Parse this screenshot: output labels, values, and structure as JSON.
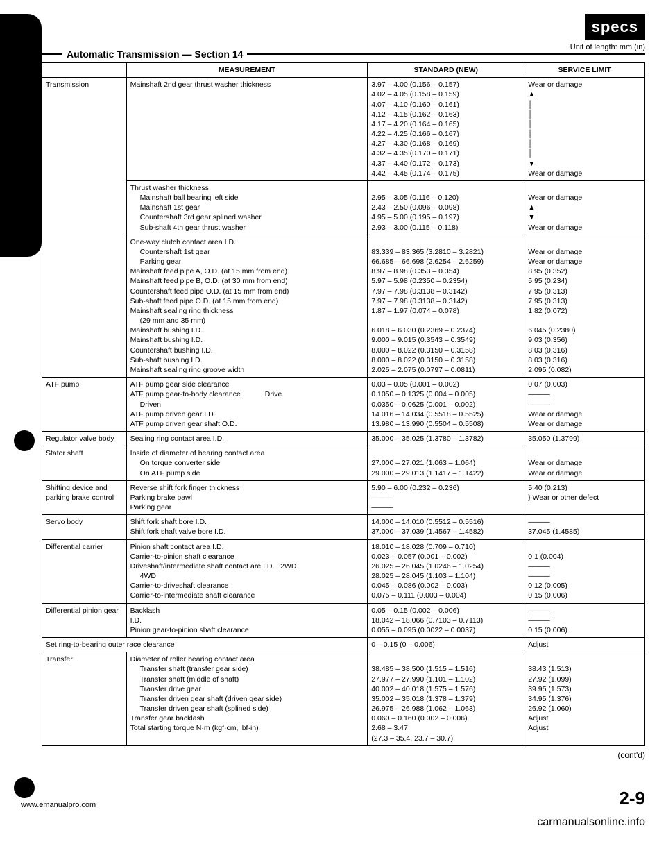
{
  "badge": "specs",
  "unit_note": "Unit of length: mm (in)",
  "section_title": "Automatic Transmission — Section 14",
  "headers": {
    "c1": "",
    "c2": "MEASUREMENT",
    "c3": "STANDARD (NEW)",
    "c4": "SERVICE LIMIT"
  },
  "rows": [
    {
      "component": "Transmission",
      "blocks": [
        {
          "measure": [
            "Mainshaft 2nd gear thrust washer thickness"
          ],
          "standard": [
            "3.97 – 4.00 (0.156 – 0.157)",
            "4.02 – 4.05 (0.158 – 0.159)",
            "4.07 – 4.10 (0.160 – 0.161)",
            "4.12 – 4.15 (0.162 – 0.163)",
            "4.17 – 4.20 (0.164 – 0.165)",
            "4.22 – 4.25 (0.166 – 0.167)",
            "4.27 – 4.30 (0.168 – 0.169)",
            "4.32 – 4.35 (0.170 – 0.171)",
            "4.37 – 4.40 (0.172 – 0.173)",
            "4.42 – 4.45 (0.174 – 0.175)"
          ],
          "limit": [
            "Wear or damage",
            "▲",
            "│",
            "│",
            "│",
            "│",
            "│",
            "│",
            "▼",
            "Wear or damage"
          ]
        },
        {
          "measure": [
            "Thrust washer thickness",
            "  Mainshaft ball bearing left side",
            "  Mainshaft 1st gear",
            "  Countershaft 3rd gear splined washer",
            "  Sub-shaft 4th gear thrust washer"
          ],
          "standard": [
            "",
            "2.95 – 3.05 (0.116 – 0.120)",
            "2.43 – 2.50 (0.096 – 0.098)",
            "4.95 – 5.00 (0.195 – 0.197)",
            "2.93 – 3.00 (0.115 – 0.118)"
          ],
          "limit": [
            "",
            "Wear or damage",
            "▲",
            "▼",
            "Wear or damage"
          ]
        },
        {
          "measure": [
            "One-way clutch contact area I.D.",
            "  Countershaft 1st gear",
            "  Parking gear",
            "Mainshaft feed pipe A, O.D. (at 15 mm from end)",
            "Mainshaft feed pipe B, O.D. (at 30 mm from end)",
            "Countershaft feed pipe O.D. (at 15 mm from end)",
            "Sub-shaft feed pipe O.D. (at 15 mm from end)",
            "Mainshaft sealing ring thickness",
            "  (29 mm and 35 mm)",
            "Mainshaft bushing I.D.",
            "Mainshaft bushing I.D.",
            "Countershaft bushing I.D.",
            "Sub-shaft bushing I.D.",
            "Mainshaft sealing ring groove width"
          ],
          "standard": [
            "",
            "83.339 – 83.365 (3.2810 – 3.2821)",
            "66.685 – 66.698 (2.6254 – 2.6259)",
            "8.97 – 8.98 (0.353 – 0.354)",
            "5.97 – 5.98 (0.2350 – 0.2354)",
            "7.97 – 7.98 (0.3138 – 0.3142)",
            "7.97 – 7.98 (0.3138 – 0.3142)",
            "1.87 – 1.97 (0.074 – 0.078)",
            "",
            "6.018 – 6.030 (0.2369 – 0.2374)",
            "9.000 – 9.015 (0.3543 – 0.3549)",
            "8.000 – 8.022 (0.3150 – 0.3158)",
            "8.000 – 8.022 (0.3150 – 0.3158)",
            "2.025 – 2.075 (0.0797 – 0.0811)"
          ],
          "limit": [
            "",
            "Wear or damage",
            "Wear or damage",
            "8.95 (0.352)",
            "5.95 (0.234)",
            "7.95 (0.313)",
            "7.95 (0.313)",
            "1.82 (0.072)",
            "",
            "6.045 (0.2380)",
            "9.03 (0.356)",
            "8.03 (0.316)",
            "8.03 (0.316)",
            "2.095 (0.082)"
          ]
        }
      ]
    },
    {
      "component": "ATF pump",
      "blocks": [
        {
          "measure": [
            "ATF pump gear side clearance",
            "ATF pump gear-to-body clearance            Drive",
            "                                                              Driven",
            "ATF pump driven gear I.D.",
            "ATF pump driven gear shaft O.D."
          ],
          "standard": [
            "0.03 – 0.05 (0.001 – 0.002)",
            "0.1050 – 0.1325 (0.004 – 0.005)",
            "0.0350 – 0.0625 (0.001 – 0.002)",
            "14.016 – 14.034 (0.5518 – 0.5525)",
            "13.980 – 13.990 (0.5504 – 0.5508)"
          ],
          "limit": [
            "0.07 (0.003)",
            "———",
            "———",
            "Wear or damage",
            "Wear or damage"
          ]
        }
      ]
    },
    {
      "component": "Regulator valve body",
      "blocks": [
        {
          "measure": [
            "Sealing ring contact area I.D."
          ],
          "standard": [
            "35.000 – 35.025 (1.3780 – 1.3782)"
          ],
          "limit": [
            "35.050 (1.3799)"
          ]
        }
      ]
    },
    {
      "component": "Stator shaft",
      "blocks": [
        {
          "measure": [
            "Inside of diameter of bearing contact area",
            "  On torque converter side",
            "  On ATF pump side"
          ],
          "standard": [
            "",
            "27.000 – 27.021 (1.063 – 1.064)",
            "29.000 – 29.013 (1.1417 – 1.1422)"
          ],
          "limit": [
            "",
            "Wear or damage",
            "Wear or damage"
          ]
        }
      ]
    },
    {
      "component": "Shifting device and parking brake control",
      "blocks": [
        {
          "measure": [
            "Reverse shift fork finger thickness",
            "Parking brake pawl",
            "Parking gear"
          ],
          "standard": [
            "5.90 – 6.00 (0.232 – 0.236)",
            "———",
            "———"
          ],
          "limit": [
            "5.40 (0.213)",
            "} Wear or other defect",
            ""
          ]
        }
      ]
    },
    {
      "component": "Servo body",
      "blocks": [
        {
          "measure": [
            "Shift fork shaft bore I.D.",
            "Shift fork shaft valve bore I.D."
          ],
          "standard": [
            "14.000 – 14.010 (0.5512 – 0.5516)",
            "37.000 – 37.039 (1.4567 – 1.4582)"
          ],
          "limit": [
            "———",
            "37.045 (1.4585)"
          ]
        }
      ]
    },
    {
      "component": "Differential carrier",
      "blocks": [
        {
          "measure": [
            "Pinion shaft contact area I.D.",
            "Carrier-to-pinion shaft clearance",
            "Driveshaft/intermediate shaft contact are I.D.   2WD",
            "                                                                    4WD",
            "Carrier-to-driveshaft clearance",
            "Carrier-to-intermediate shaft clearance"
          ],
          "standard": [
            "18.010 – 18.028 (0.709 – 0.710)",
            "0.023 – 0.057 (0.001 – 0.002)",
            "26.025 – 26.045 (1.0246 – 1.0254)",
            "28.025 – 28.045 (1.103 – 1.104)",
            "0.045 – 0.086 (0.002 – 0.003)",
            "0.075 – 0.111 (0.003 – 0.004)"
          ],
          "limit": [
            "",
            "0.1 (0.004)",
            "———",
            "———",
            "0.12 (0.005)",
            "0.15 (0.006)"
          ]
        }
      ]
    },
    {
      "component": "Differential pinion gear",
      "blocks": [
        {
          "measure": [
            "Backlash",
            "I.D.",
            "Pinion gear-to-pinion shaft clearance"
          ],
          "standard": [
            "0.05 – 0.15 (0.002 – 0.006)",
            "18.042 – 18.066 (0.7103 – 0.7113)",
            "0.055 – 0.095 (0.0022 – 0.0037)"
          ],
          "limit": [
            "———",
            "———",
            "0.15 (0.006)"
          ]
        }
      ]
    },
    {
      "component_span": "Set ring-to-bearing outer race clearance",
      "standard": "0 – 0.15 (0 – 0.006)",
      "limit": "Adjust"
    },
    {
      "component": "Transfer",
      "blocks": [
        {
          "measure": [
            "Diameter of roller bearing contact area",
            "  Transfer shaft (transfer gear side)",
            "  Transfer shaft (middle of shaft)",
            "  Transfer drive gear",
            "  Transfer driven gear shaft (driven gear side)",
            "  Transfer driven gear shaft (splined side)",
            "Transfer gear backlash",
            "Total starting torque N·m (kgf·cm, lbf·in)"
          ],
          "standard": [
            "",
            "38.485 – 38.500 (1.515 – 1.516)",
            "27.977 – 27.990 (1.101 – 1.102)",
            "40.002 – 40.018 (1.575 – 1.576)",
            "35.002 – 35.018 (1.378 – 1.379)",
            "26.975 – 26.988 (1.062 – 1.063)",
            "0.060 – 0.160 (0.002 – 0.006)",
            "2.68 – 3.47",
            "(27.3 – 35.4, 23.7 – 30.7)"
          ],
          "limit": [
            "",
            "38.43 (1.513)",
            "27.92 (1.099)",
            "39.95 (1.573)",
            "34.95 (1.376)",
            "26.92 (1.060)",
            "Adjust",
            "Adjust",
            ""
          ]
        }
      ]
    }
  ],
  "contd": "(cont'd)",
  "footer": {
    "url": "www.emanualpro.com",
    "page_num": "2-9",
    "watermark": "carmanualsonline.info"
  }
}
